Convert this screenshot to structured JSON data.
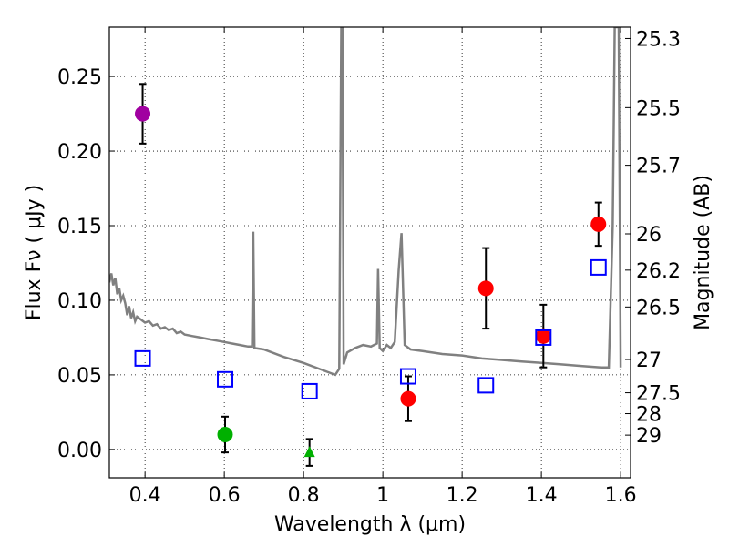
{
  "chart_data": {
    "type": "scatter",
    "title": "",
    "xlabel": "Wavelength  λ (μm)",
    "ylabel": "Flux  Fν  ( μJy )",
    "ylabel_right": "Magnitude (AB)",
    "xlim": [
      0.31,
      1.625
    ],
    "ylim": [
      -0.019,
      0.283
    ],
    "grid": true,
    "x_ticks": [
      {
        "value": 0.4,
        "label": "0.4"
      },
      {
        "value": 0.6,
        "label": "0.6"
      },
      {
        "value": 0.8,
        "label": "0.8"
      },
      {
        "value": 1.0,
        "label": "1"
      },
      {
        "value": 1.2,
        "label": "1.2"
      },
      {
        "value": 1.4,
        "label": "1.4"
      },
      {
        "value": 1.6,
        "label": "1.6"
      }
    ],
    "y_ticks": [
      {
        "value": 0.0,
        "label": "0.00"
      },
      {
        "value": 0.05,
        "label": "0.05"
      },
      {
        "value": 0.1,
        "label": "0.10"
      },
      {
        "value": 0.15,
        "label": "0.15"
      },
      {
        "value": 0.2,
        "label": "0.20"
      },
      {
        "value": 0.25,
        "label": "0.25"
      }
    ],
    "y_right_ticks": [
      {
        "flux": 0.2754,
        "label": "25.3"
      },
      {
        "flux": 0.2291,
        "label": "25.5"
      },
      {
        "flux": 0.1905,
        "label": "25.7"
      },
      {
        "flux": 0.1445,
        "label": "26"
      },
      {
        "flux": 0.1202,
        "label": "26.2"
      },
      {
        "flux": 0.0955,
        "label": "26.5"
      },
      {
        "flux": 0.0603,
        "label": "27"
      },
      {
        "flux": 0.038,
        "label": "27.5"
      },
      {
        "flux": 0.024,
        "label": "28"
      },
      {
        "flux": 0.0096,
        "label": "29"
      }
    ],
    "series": [
      {
        "name": "magenta detection",
        "marker": "circle",
        "color": "#a000a0",
        "points": [
          {
            "x": 0.394,
            "y": 0.225,
            "err": 0.02
          }
        ]
      },
      {
        "name": "green detections",
        "marker": "circle",
        "color": "#00b000",
        "points": [
          {
            "x": 0.602,
            "y": 0.01,
            "err": 0.012
          }
        ]
      },
      {
        "name": "green triangle",
        "marker": "triangle",
        "color": "#00b000",
        "points": [
          {
            "x": 0.815,
            "y": -0.002,
            "err": 0.009
          }
        ]
      },
      {
        "name": "red detections",
        "marker": "circle",
        "color": "#ff0000",
        "points": [
          {
            "x": 1.064,
            "y": 0.034,
            "err": 0.015
          },
          {
            "x": 1.26,
            "y": 0.108,
            "err": 0.027
          },
          {
            "x": 1.405,
            "y": 0.076,
            "err": 0.021
          },
          {
            "x": 1.544,
            "y": 0.151,
            "err": 0.0145
          }
        ]
      },
      {
        "name": "model photometry",
        "marker": "open-square",
        "color": "#0000ff",
        "points": [
          {
            "x": 0.394,
            "y": 0.061
          },
          {
            "x": 0.602,
            "y": 0.047
          },
          {
            "x": 0.815,
            "y": 0.039
          },
          {
            "x": 1.064,
            "y": 0.049
          },
          {
            "x": 1.26,
            "y": 0.043
          },
          {
            "x": 1.405,
            "y": 0.075
          },
          {
            "x": 1.544,
            "y": 0.122
          }
        ]
      },
      {
        "name": "model spectrum",
        "type": "line",
        "color": "#808080",
        "points": [
          [
            0.31,
            0.112
          ],
          [
            0.315,
            0.118
          ],
          [
            0.32,
            0.11
          ],
          [
            0.325,
            0.115
          ],
          [
            0.33,
            0.104
          ],
          [
            0.335,
            0.108
          ],
          [
            0.34,
            0.1
          ],
          [
            0.345,
            0.103
          ],
          [
            0.35,
            0.098
          ],
          [
            0.355,
            0.09
          ],
          [
            0.36,
            0.096
          ],
          [
            0.365,
            0.088
          ],
          [
            0.37,
            0.092
          ],
          [
            0.375,
            0.086
          ],
          [
            0.38,
            0.089
          ],
          [
            0.39,
            0.087
          ],
          [
            0.4,
            0.085
          ],
          [
            0.41,
            0.086
          ],
          [
            0.42,
            0.083
          ],
          [
            0.43,
            0.084
          ],
          [
            0.44,
            0.081
          ],
          [
            0.45,
            0.082
          ],
          [
            0.46,
            0.08
          ],
          [
            0.47,
            0.081
          ],
          [
            0.48,
            0.078
          ],
          [
            0.49,
            0.079
          ],
          [
            0.5,
            0.077
          ],
          [
            0.52,
            0.076
          ],
          [
            0.54,
            0.075
          ],
          [
            0.56,
            0.074
          ],
          [
            0.58,
            0.073
          ],
          [
            0.6,
            0.072
          ],
          [
            0.62,
            0.071
          ],
          [
            0.64,
            0.07
          ],
          [
            0.66,
            0.069
          ],
          [
            0.67,
            0.069
          ],
          [
            0.673,
            0.146
          ],
          [
            0.676,
            0.068
          ],
          [
            0.7,
            0.067
          ],
          [
            0.75,
            0.062
          ],
          [
            0.8,
            0.058
          ],
          [
            0.85,
            0.053
          ],
          [
            0.88,
            0.05
          ],
          [
            0.89,
            0.054
          ],
          [
            0.895,
            0.283
          ],
          [
            0.898,
            0.283
          ],
          [
            0.901,
            0.057
          ],
          [
            0.91,
            0.065
          ],
          [
            0.93,
            0.068
          ],
          [
            0.95,
            0.07
          ],
          [
            0.97,
            0.069
          ],
          [
            0.985,
            0.071
          ],
          [
            0.988,
            0.121
          ],
          [
            0.992,
            0.068
          ],
          [
            1.0,
            0.066
          ],
          [
            1.01,
            0.07
          ],
          [
            1.02,
            0.068
          ],
          [
            1.03,
            0.072
          ],
          [
            1.04,
            0.12
          ],
          [
            1.047,
            0.145
          ],
          [
            1.055,
            0.07
          ],
          [
            1.07,
            0.067
          ],
          [
            1.1,
            0.066
          ],
          [
            1.15,
            0.064
          ],
          [
            1.2,
            0.063
          ],
          [
            1.25,
            0.061
          ],
          [
            1.3,
            0.06
          ],
          [
            1.35,
            0.059
          ],
          [
            1.4,
            0.058
          ],
          [
            1.45,
            0.057
          ],
          [
            1.5,
            0.056
          ],
          [
            1.55,
            0.055
          ],
          [
            1.57,
            0.055
          ],
          [
            1.58,
            0.15
          ],
          [
            1.585,
            0.283
          ],
          [
            1.595,
            0.283
          ],
          [
            1.6,
            0.055
          ]
        ]
      }
    ]
  }
}
